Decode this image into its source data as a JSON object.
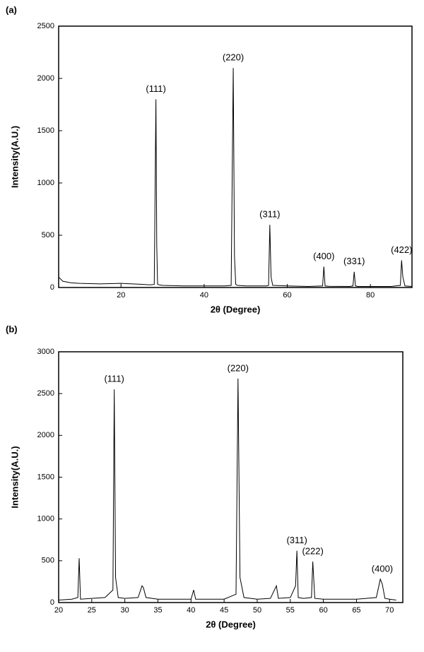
{
  "chart_data": [
    {
      "type": "line",
      "panel_label": "(a)",
      "x_label": "2θ (Degree)",
      "y_label": "Intensity(A.U.)",
      "xlim": [
        5,
        90
      ],
      "xticks": [
        20,
        40,
        60,
        80
      ],
      "ylim": [
        0,
        2500
      ],
      "yticks": [
        0,
        500,
        1000,
        1500,
        2000,
        2500
      ],
      "color": "#000000",
      "x": [
        5,
        6,
        8,
        10,
        15,
        20,
        25,
        27,
        28,
        28.4,
        28.6,
        28.8,
        29.2,
        30,
        35,
        40,
        45,
        46.5,
        47,
        47.3,
        47.6,
        48,
        50,
        55,
        55.5,
        55.8,
        56.1,
        56.5,
        60,
        65,
        68.5,
        68.8,
        69.1,
        70,
        75,
        75.8,
        76.1,
        76.4,
        77,
        80,
        85,
        87.2,
        87.5,
        87.8,
        88.3,
        90
      ],
      "values": [
        100,
        60,
        45,
        40,
        35,
        40,
        30,
        25,
        30,
        1800,
        400,
        30,
        25,
        20,
        15,
        15,
        15,
        20,
        2100,
        300,
        30,
        20,
        15,
        15,
        20,
        600,
        100,
        20,
        15,
        10,
        15,
        200,
        15,
        12,
        10,
        15,
        150,
        15,
        10,
        10,
        10,
        20,
        260,
        100,
        15,
        10
      ],
      "annotations": [
        {
          "text": "(111)",
          "x": 28.4,
          "y": 1800
        },
        {
          "text": "(220)",
          "x": 47,
          "y": 2100
        },
        {
          "text": "(311)",
          "x": 55.8,
          "y": 600
        },
        {
          "text": "(400)",
          "x": 68.8,
          "y": 200
        },
        {
          "text": "(331)",
          "x": 76.1,
          "y": 150
        },
        {
          "text": "(422)",
          "x": 87.5,
          "y": 260
        }
      ]
    },
    {
      "type": "line",
      "panel_label": "(b)",
      "x_label": "2θ (Degree)",
      "y_label": "Intensity(A.U.)",
      "xlim": [
        20,
        72
      ],
      "xticks": [
        20,
        25,
        30,
        35,
        40,
        45,
        50,
        55,
        60,
        65,
        70
      ],
      "ylim": [
        0,
        3000
      ],
      "yticks": [
        0,
        500,
        1000,
        1500,
        2000,
        2500,
        3000
      ],
      "color": "#000000",
      "x": [
        20,
        22,
        22.9,
        23.1,
        23.3,
        25,
        27,
        28.2,
        28.4,
        28.6,
        29,
        30,
        32,
        32.6,
        32.8,
        33.2,
        35,
        40,
        40.4,
        40.7,
        42,
        45,
        46.8,
        47.1,
        47.4,
        48,
        50,
        52,
        52.9,
        53.2,
        55,
        55.8,
        56,
        56.2,
        57,
        58.2,
        58.4,
        58.7,
        60,
        65,
        68,
        68.6,
        68.9,
        69.3,
        70,
        71
      ],
      "values": [
        30,
        40,
        60,
        530,
        40,
        50,
        60,
        150,
        2550,
        300,
        60,
        50,
        60,
        200,
        180,
        60,
        40,
        40,
        150,
        40,
        40,
        40,
        100,
        2680,
        300,
        60,
        40,
        50,
        200,
        50,
        60,
        200,
        620,
        60,
        50,
        60,
        490,
        50,
        40,
        40,
        60,
        280,
        220,
        50,
        40,
        30
      ],
      "annotations": [
        {
          "text": "(111)",
          "x": 28.4,
          "y": 2550
        },
        {
          "text": "(220)",
          "x": 47.1,
          "y": 2680
        },
        {
          "text": "(311)",
          "x": 56,
          "y": 620
        },
        {
          "text": "(222)",
          "x": 58.4,
          "y": 490
        },
        {
          "text": "(400)",
          "x": 68.9,
          "y": 280
        }
      ]
    }
  ]
}
